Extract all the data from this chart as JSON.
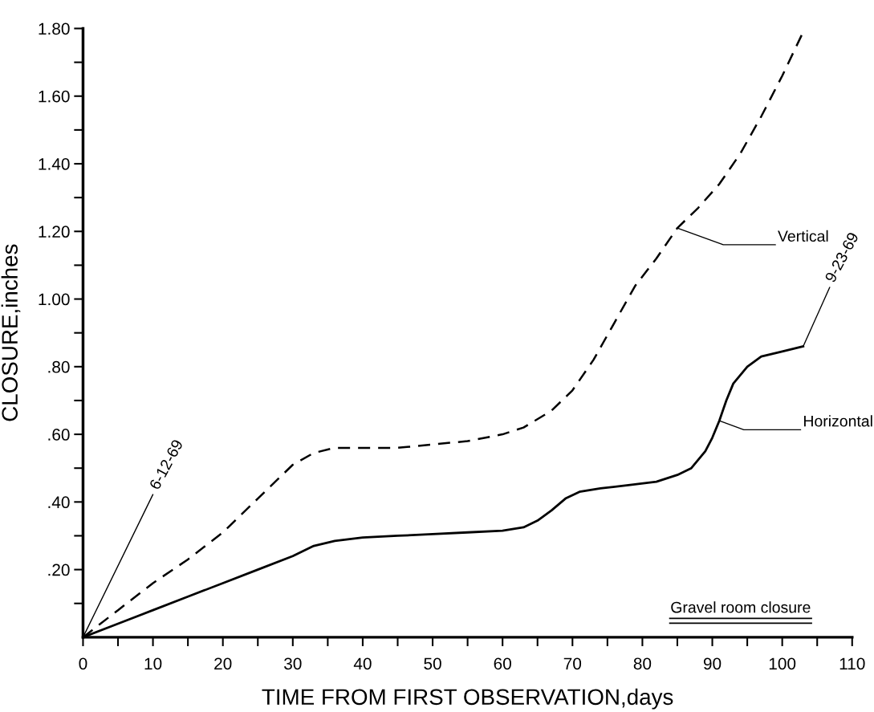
{
  "chart_data": {
    "type": "line",
    "xlabel": "TIME FROM FIRST OBSERVATION,days",
    "ylabel": "CLOSURE,inches",
    "xlim": [
      0,
      110
    ],
    "ylim": [
      0,
      1.8
    ],
    "xticks": [
      0,
      {
        "value": 5,
        "label": null
      },
      10,
      {
        "value": 15,
        "label": null
      },
      20,
      {
        "value": 25,
        "label": null
      },
      30,
      {
        "value": 35,
        "label": null
      },
      40,
      {
        "value": 45,
        "label": null
      },
      50,
      {
        "value": 55,
        "label": null
      },
      60,
      {
        "value": 65,
        "label": null
      },
      70,
      {
        "value": 75,
        "label": null
      },
      80,
      {
        "value": 85,
        "label": null
      },
      90,
      {
        "value": 95,
        "label": null
      },
      100,
      {
        "value": 105,
        "label": null
      },
      110
    ],
    "yticks": [
      {
        "value": 0.1,
        "label": null
      },
      {
        "value": 0.2,
        "label": ".20"
      },
      {
        "value": 0.3,
        "label": null
      },
      {
        "value": 0.4,
        "label": ".40"
      },
      {
        "value": 0.5,
        "label": null
      },
      {
        "value": 0.6,
        "label": ".60"
      },
      {
        "value": 0.7,
        "label": null
      },
      {
        "value": 0.8,
        "label": ".80"
      },
      {
        "value": 0.9,
        "label": null
      },
      {
        "value": 1.0,
        "label": "1.00"
      },
      {
        "value": 1.1,
        "label": null
      },
      {
        "value": 1.2,
        "label": "1.20"
      },
      {
        "value": 1.3,
        "label": null
      },
      {
        "value": 1.4,
        "label": "1.40"
      },
      {
        "value": 1.5,
        "label": null
      },
      {
        "value": 1.6,
        "label": "1.60"
      },
      {
        "value": 1.7,
        "label": null
      },
      {
        "value": 1.8,
        "label": "1.80"
      }
    ],
    "grid": false,
    "legend": false,
    "marker": "none",
    "series": [
      {
        "color": "#000000",
        "line_style": "dashed",
        "x": [
          0,
          5,
          10,
          15,
          20,
          25,
          30,
          33,
          36,
          40,
          45,
          50,
          55,
          60,
          63,
          67,
          70,
          73,
          76,
          79,
          82,
          85,
          88,
          91,
          94,
          97,
          100,
          103
        ],
        "values": [
          0,
          0.08,
          0.16,
          0.23,
          0.31,
          0.41,
          0.51,
          0.545,
          0.56,
          0.56,
          0.56,
          0.57,
          0.58,
          0.6,
          0.62,
          0.67,
          0.73,
          0.82,
          0.93,
          1.04,
          1.12,
          1.21,
          1.27,
          1.34,
          1.43,
          1.54,
          1.66,
          1.79
        ]
      },
      {
        "color": "#000000",
        "line_style": "solid",
        "x": [
          0,
          5,
          10,
          15,
          20,
          25,
          30,
          33,
          36,
          40,
          45,
          50,
          55,
          60,
          63,
          65,
          67,
          69,
          71,
          74,
          78,
          82,
          85,
          87,
          89,
          90,
          91,
          92,
          93,
          95,
          97,
          100,
          103
        ],
        "values": [
          0,
          0.04,
          0.08,
          0.12,
          0.16,
          0.2,
          0.24,
          0.27,
          0.285,
          0.295,
          0.3,
          0.305,
          0.31,
          0.315,
          0.325,
          0.345,
          0.375,
          0.41,
          0.43,
          0.44,
          0.45,
          0.46,
          0.48,
          0.5,
          0.55,
          0.59,
          0.64,
          0.7,
          0.75,
          0.8,
          0.83,
          0.845,
          0.86
        ]
      }
    ],
    "annotations": [
      {
        "text": "6-12-69",
        "x": 0,
        "y": 0
      },
      {
        "text": "9-23-69",
        "x": 103,
        "y": 0.86
      },
      {
        "text": "Vertical",
        "x": 85,
        "y": 1.21
      },
      {
        "text": "Horizontal",
        "x": 91,
        "y": 0.64
      },
      "Gravel room closure"
    ]
  }
}
